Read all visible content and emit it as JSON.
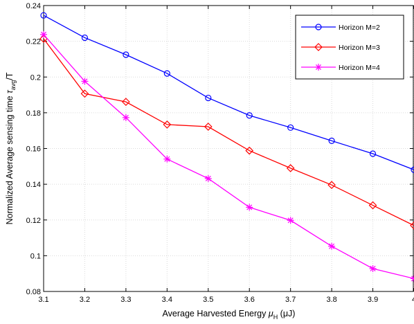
{
  "chart_data": {
    "type": "line",
    "xlabel": {
      "main": "Average Harvested Energy ",
      "mu": "μ",
      "sub": "H",
      "unit": " (μJ)"
    },
    "ylabel": {
      "main": "Normalized Average sensing time ",
      "tau": "τ",
      "sub": "avg",
      "tail": "/T"
    },
    "x": [
      3.1,
      3.2,
      3.3,
      3.4,
      3.5,
      3.6,
      3.7,
      3.8,
      3.9,
      4.0
    ],
    "xlim": [
      3.1,
      4.0
    ],
    "ylim": [
      0.08,
      0.24
    ],
    "xticks": [
      "3.1",
      "3.2",
      "3.3",
      "3.4",
      "3.5",
      "3.6",
      "3.7",
      "3.8",
      "3.9",
      "4"
    ],
    "xtick_values": [
      3.1,
      3.2,
      3.3,
      3.4,
      3.5,
      3.6,
      3.7,
      3.8,
      3.9,
      4.0
    ],
    "yticks": [
      "0.08",
      "0.1",
      "0.12",
      "0.14",
      "0.16",
      "0.18",
      "0.2",
      "0.22",
      "0.24"
    ],
    "ytick_values": [
      0.08,
      0.1,
      0.12,
      0.14,
      0.16,
      0.18,
      0.2,
      0.22,
      0.24
    ],
    "grid": true,
    "legend_position": "top-right",
    "series": [
      {
        "name": "Horizon M=2",
        "color": "#0000ff",
        "marker": "circle",
        "values": [
          0.2345,
          0.222,
          0.2125,
          0.202,
          0.1883,
          0.1785,
          0.1717,
          0.1643,
          0.1571,
          0.1481
        ]
      },
      {
        "name": "Horizon M=3",
        "color": "#ff0000",
        "marker": "diamond",
        "values": [
          0.2214,
          0.1907,
          0.1861,
          0.1734,
          0.1722,
          0.1588,
          0.149,
          0.1396,
          0.1282,
          0.1169
        ]
      },
      {
        "name": "Horizon M=4",
        "color": "#ff00ff",
        "marker": "asterisk",
        "values": [
          0.2238,
          0.1976,
          0.1773,
          0.1541,
          0.1432,
          0.1271,
          0.1198,
          0.1053,
          0.0928,
          0.0872
        ]
      }
    ]
  }
}
